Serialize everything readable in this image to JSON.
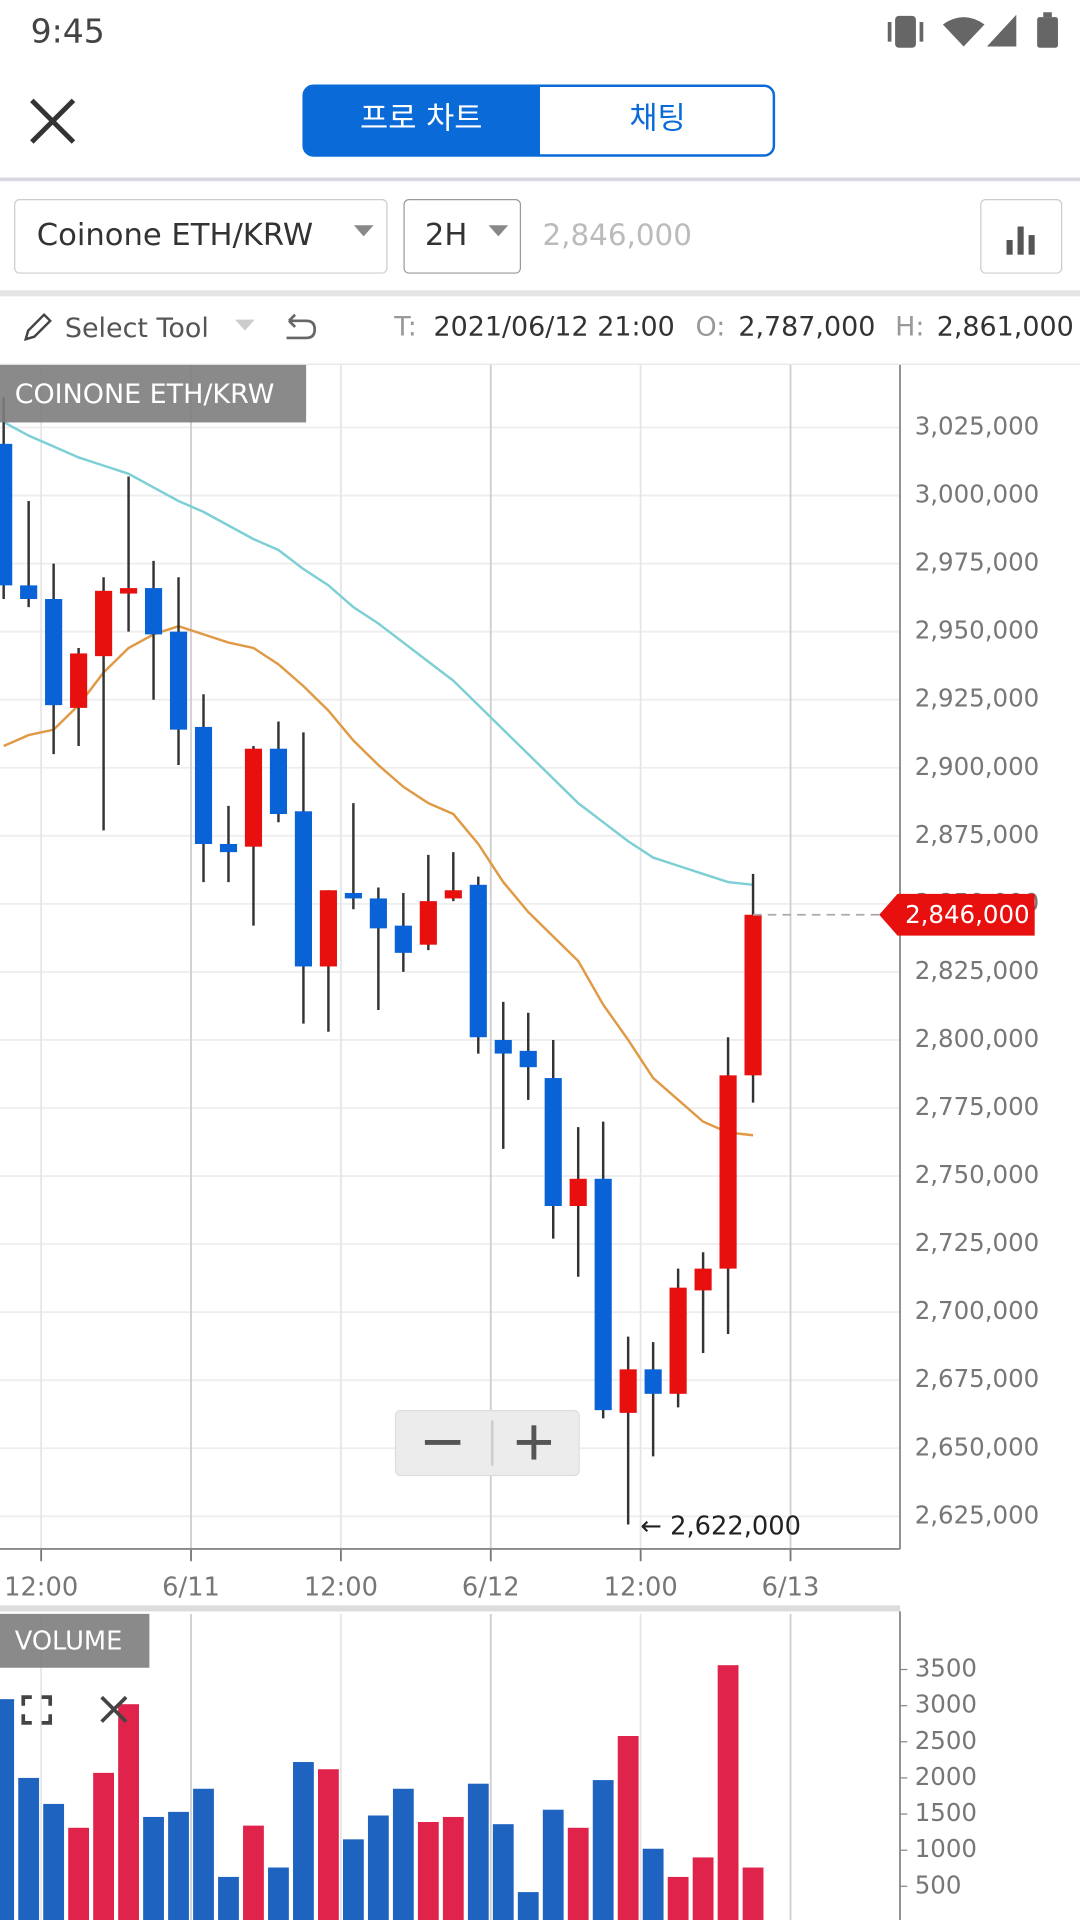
{
  "ui": {
    "time": "9:45",
    "tabs": [
      "프로 차트",
      "채팅"
    ],
    "symbol": "Coinone ETH/KRW",
    "interval": "2H",
    "price_input": "2,846,000",
    "tool": "Select Tool",
    "info": [
      {
        "key": "T:",
        "value": "2021/06/12 21:00"
      },
      {
        "key": "O:",
        "value": "2,787,000"
      },
      {
        "key": "H:",
        "value": "2,861,000"
      }
    ]
  },
  "chart_data": [
    {
      "type": "candlestick",
      "title": "COINONE ETH/KRW",
      "x": [
        "2021/06/10 09:00",
        "2021/06/10 11:00",
        "2021/06/10 13:00",
        "2021/06/10 15:00",
        "2021/06/10 17:00",
        "2021/06/10 19:00",
        "2021/06/10 21:00",
        "2021/06/10 23:00",
        "2021/06/11 01:00",
        "2021/06/11 03:00",
        "2021/06/11 05:00",
        "2021/06/11 07:00",
        "2021/06/11 09:00",
        "2021/06/11 11:00",
        "2021/06/11 13:00",
        "2021/06/11 15:00",
        "2021/06/11 17:00",
        "2021/06/11 19:00",
        "2021/06/11 21:00",
        "2021/06/11 23:00",
        "2021/06/12 01:00",
        "2021/06/12 03:00",
        "2021/06/12 05:00",
        "2021/06/12 07:00",
        "2021/06/12 09:00",
        "2021/06/12 11:00",
        "2021/06/12 13:00",
        "2021/06/12 15:00",
        "2021/06/12 17:00",
        "2021/06/12 19:00",
        "2021/06/12 21:00"
      ],
      "open": [
        3019000,
        2967000,
        2962000,
        2922000,
        2941000,
        2964000,
        2966000,
        2950000,
        2915000,
        2872000,
        2871000,
        2907000,
        2884000,
        2827000,
        2854000,
        2852000,
        2842000,
        2835000,
        2852000,
        2857000,
        2800000,
        2796000,
        2786000,
        2739000,
        2749000,
        2663000,
        2679000,
        2670000,
        2708000,
        2716000,
        2787000
      ],
      "high": [
        3036000,
        2998000,
        2975000,
        2944000,
        2970000,
        3007000,
        2976000,
        2970000,
        2927000,
        2886000,
        2908000,
        2917000,
        2913000,
        2855000,
        2887000,
        2856000,
        2854000,
        2868000,
        2869000,
        2860000,
        2814000,
        2810000,
        2800000,
        2768000,
        2770000,
        2691000,
        2689000,
        2716000,
        2722000,
        2801000,
        2861000
      ],
      "low": [
        2962000,
        2959000,
        2905000,
        2908000,
        2877000,
        2950000,
        2925000,
        2901000,
        2858000,
        2858000,
        2842000,
        2880000,
        2806000,
        2803000,
        2848000,
        2811000,
        2825000,
        2833000,
        2851000,
        2795000,
        2760000,
        2778000,
        2727000,
        2713000,
        2661000,
        2622000,
        2647000,
        2665000,
        2685000,
        2692000,
        2777000
      ],
      "close": [
        2967000,
        2962000,
        2923000,
        2942000,
        2965000,
        2966000,
        2949000,
        2914000,
        2872000,
        2869000,
        2907000,
        2883000,
        2827000,
        2855000,
        2852000,
        2841000,
        2832000,
        2851000,
        2855000,
        2801000,
        2795000,
        2790000,
        2739000,
        2749000,
        2664000,
        2679000,
        2670000,
        2709000,
        2716000,
        2787000,
        2846000
      ],
      "up_color": "#e8100f",
      "down_color": "#0a63d6",
      "series": [
        {
          "color": "#7ccfd4",
          "values": [
            3027000,
            3022000,
            3018000,
            3014000,
            3011000,
            3008000,
            3003000,
            2998000,
            2994000,
            2989000,
            2984000,
            2980000,
            2973000,
            2967000,
            2959000,
            2953000,
            2946000,
            2939000,
            2932000,
            2923000,
            2914000,
            2905000,
            2896000,
            2887000,
            2880000,
            2873000,
            2867000,
            2864000,
            2861000,
            2858000,
            2857000
          ]
        },
        {
          "color": "#e09a46",
          "values": [
            2908000,
            2912000,
            2914000,
            2923000,
            2935000,
            2944000,
            2949000,
            2952000,
            2949000,
            2946000,
            2944000,
            2938000,
            2930000,
            2921000,
            2910000,
            2901000,
            2893000,
            2887000,
            2883000,
            2872000,
            2858000,
            2847000,
            2838000,
            2829000,
            2813000,
            2800000,
            2786000,
            2778000,
            2770000,
            2766000,
            2765000
          ]
        }
      ],
      "ylim": [
        2613000,
        3048000
      ],
      "yticks": [
        {
          "value": 3025000,
          "label": "3,025,000"
        },
        {
          "value": 3000000,
          "label": "3,000,000"
        },
        {
          "value": 2975000,
          "label": "2,975,000"
        },
        {
          "value": 2950000,
          "label": "2,950,000"
        },
        {
          "value": 2925000,
          "label": "2,925,000"
        },
        {
          "value": 2900000,
          "label": "2,900,000"
        },
        {
          "value": 2875000,
          "label": "2,875,000"
        },
        {
          "value": 2850000,
          "label": "2,850,000"
        },
        {
          "value": 2825000,
          "label": "2,825,000"
        },
        {
          "value": 2800000,
          "label": "2,800,000"
        },
        {
          "value": 2775000,
          "label": "2,775,000"
        },
        {
          "value": 2750000,
          "label": "2,750,000"
        },
        {
          "value": 2725000,
          "label": "2,725,000"
        },
        {
          "value": 2700000,
          "label": "2,700,000"
        },
        {
          "value": 2675000,
          "label": "2,675,000"
        },
        {
          "value": 2650000,
          "label": "2,650,000"
        },
        {
          "value": 2625000,
          "label": "2,625,000"
        }
      ],
      "xticks": [
        {
          "value": "2021/06/10 12:00",
          "label": "12:00"
        },
        {
          "value": "2021/06/11 00:00",
          "label": "6/11"
        },
        {
          "value": "2021/06/11 12:00",
          "label": "12:00"
        },
        {
          "value": "2021/06/12 00:00",
          "label": "6/12"
        },
        {
          "value": "2021/06/12 12:00",
          "label": "12:00"
        },
        {
          "value": "2021/06/13 00:00",
          "label": "6/13"
        }
      ],
      "grid": true,
      "last_price": {
        "value": 2846000,
        "label": "2,846,000",
        "color": "#e8100f"
      },
      "annotation": {
        "x": "2021/06/12 11:00",
        "value": 2622000,
        "label": "← 2,622,000"
      }
    },
    {
      "type": "bar",
      "title": "VOLUME",
      "x": [
        "2021/06/10 09:00",
        "2021/06/10 11:00",
        "2021/06/10 13:00",
        "2021/06/10 15:00",
        "2021/06/10 17:00",
        "2021/06/10 19:00",
        "2021/06/10 21:00",
        "2021/06/10 23:00",
        "2021/06/11 01:00",
        "2021/06/11 03:00",
        "2021/06/11 05:00",
        "2021/06/11 07:00",
        "2021/06/11 09:00",
        "2021/06/11 11:00",
        "2021/06/11 13:00",
        "2021/06/11 15:00",
        "2021/06/11 17:00",
        "2021/06/11 19:00",
        "2021/06/11 21:00",
        "2021/06/11 23:00",
        "2021/06/12 01:00",
        "2021/06/12 03:00",
        "2021/06/12 05:00",
        "2021/06/12 07:00",
        "2021/06/12 09:00",
        "2021/06/12 11:00",
        "2021/06/12 13:00",
        "2021/06/12 15:00",
        "2021/06/12 17:00",
        "2021/06/12 19:00",
        "2021/06/12 21:00"
      ],
      "values": [
        3090,
        2000,
        1640,
        1310,
        2070,
        3020,
        1460,
        1530,
        1850,
        630,
        1340,
        760,
        2220,
        2120,
        1150,
        1480,
        1850,
        1390,
        1460,
        1920,
        1360,
        420,
        1560,
        1310,
        1970,
        2580,
        1020,
        630,
        900,
        3560,
        760
      ],
      "colors": [
        "#1f63c0",
        "#1f63c0",
        "#1f63c0",
        "#e0234a",
        "#e0234a",
        "#e0234a",
        "#1f63c0",
        "#1f63c0",
        "#1f63c0",
        "#1f63c0",
        "#e0234a",
        "#1f63c0",
        "#1f63c0",
        "#e0234a",
        "#1f63c0",
        "#1f63c0",
        "#1f63c0",
        "#e0234a",
        "#e0234a",
        "#1f63c0",
        "#1f63c0",
        "#1f63c0",
        "#1f63c0",
        "#e0234a",
        "#1f63c0",
        "#e0234a",
        "#1f63c0",
        "#e0234a",
        "#e0234a",
        "#e0234a",
        "#e0234a"
      ],
      "ylim": [
        0,
        4270
      ],
      "yticks": [
        500,
        1000,
        1500,
        2000,
        2500,
        3000,
        3500
      ]
    }
  ]
}
